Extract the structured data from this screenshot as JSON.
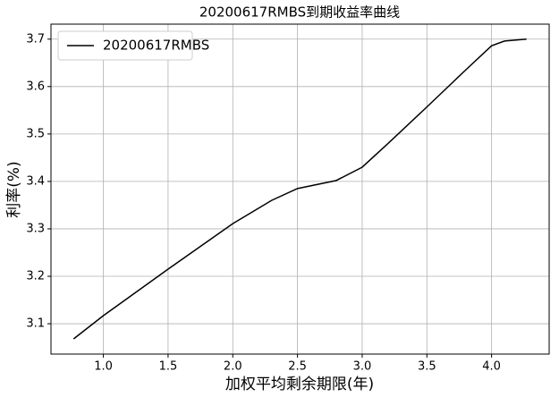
{
  "chart_data": {
    "type": "line",
    "title": "20200617RMBS到期收益率曲线",
    "x_label": "加权平均剩余期限(年)",
    "y_label": "利率(%)",
    "x": [
      0.77,
      1.0,
      1.5,
      2.0,
      2.3,
      2.5,
      2.8,
      3.0,
      3.2,
      3.5,
      3.8,
      4.0,
      4.1,
      4.27
    ],
    "series": [
      {
        "name": "20200617RMBS",
        "color": "#000000",
        "values": [
          3.068,
          3.117,
          3.215,
          3.311,
          3.36,
          3.385,
          3.402,
          3.43,
          3.48,
          3.557,
          3.635,
          3.686,
          3.696,
          3.7
        ]
      }
    ],
    "xlim": [
      0.595,
      4.445
    ],
    "ylim": [
      3.036,
      3.7316
    ],
    "xticks": [
      {
        "value": 1.0,
        "label": "1.0"
      },
      1.5,
      {
        "value": 2.0,
        "label": "2.0"
      },
      2.5,
      {
        "value": 3.0,
        "label": "3.0"
      },
      3.5,
      {
        "value": 4.0,
        "label": "4.0"
      }
    ],
    "yticks": [
      3.1,
      3.2,
      3.3,
      3.4,
      3.5,
      3.6,
      3.7
    ],
    "grid": true,
    "legend": "upper-left"
  }
}
